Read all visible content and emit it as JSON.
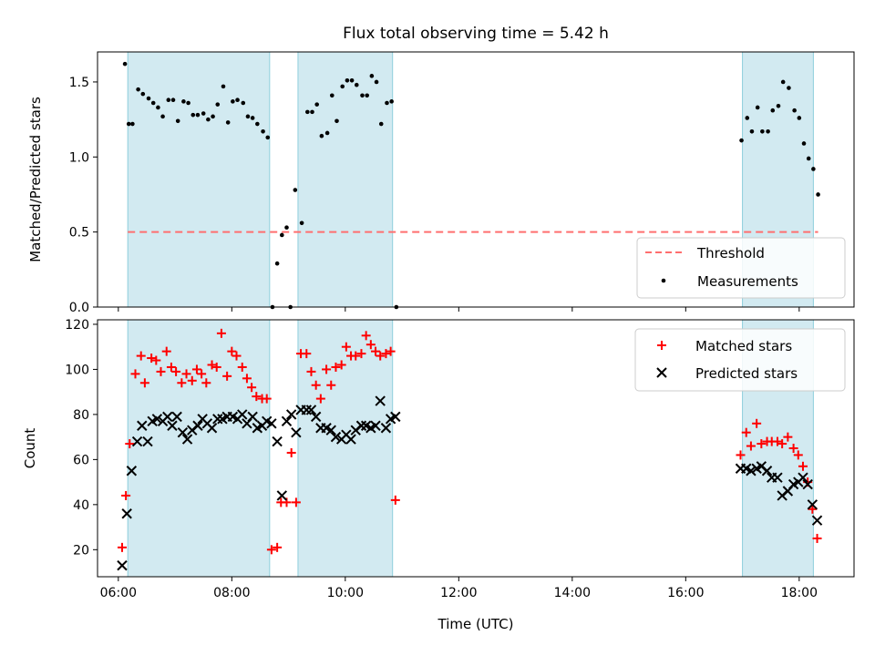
{
  "chart_data": [
    {
      "type": "scatter",
      "title": "Flux total observing time = 5.42 h",
      "xlabel": "",
      "ylabel": "Matched/Predicted stars",
      "xlim": [
        "05:38",
        "18:58"
      ],
      "ylim": [
        0,
        1.7
      ],
      "yticks": [
        0.0,
        0.5,
        1.0,
        1.5
      ],
      "ytick_labels": [
        "0.0",
        "0.5",
        "1.0",
        "1.5"
      ],
      "legend": {
        "position": "lower right",
        "entries": [
          "Threshold",
          "Measurements"
        ]
      },
      "threshold": {
        "name": "Threshold",
        "x": [
          "06:10",
          "18:20"
        ],
        "y": 0.5,
        "color": "#ff6f6f",
        "style": "dashed"
      },
      "observing_windows": [
        [
          "06:10",
          "08:40"
        ],
        [
          "09:10",
          "10:50"
        ],
        [
          "17:00",
          "18:15"
        ]
      ],
      "window_color": "#add8e6",
      "series": [
        {
          "name": "Measurements",
          "color": "#000000",
          "marker": "dot",
          "x": [
            "06:07",
            "06:11",
            "06:15",
            "06:21",
            "06:26",
            "06:32",
            "06:37",
            "06:42",
            "06:47",
            "06:53",
            "06:58",
            "07:03",
            "07:09",
            "07:14",
            "07:19",
            "07:24",
            "07:30",
            "07:35",
            "07:40",
            "07:45",
            "07:51",
            "07:56",
            "08:01",
            "08:06",
            "08:12",
            "08:17",
            "08:22",
            "08:27",
            "08:33",
            "08:38",
            "08:43",
            "08:48",
            "08:53",
            "08:58",
            "09:02",
            "09:07",
            "09:14",
            "09:20",
            "09:25",
            "09:30",
            "09:35",
            "09:41",
            "09:46",
            "09:51",
            "09:57",
            "10:02",
            "10:07",
            "10:12",
            "10:18",
            "10:23",
            "10:28",
            "10:33",
            "10:38",
            "10:44",
            "10:49",
            "10:54",
            "16:59",
            "17:05",
            "17:10",
            "17:16",
            "17:21",
            "17:27",
            "17:32",
            "17:38",
            "17:43",
            "17:49",
            "17:55",
            "18:00",
            "18:05",
            "18:10",
            "18:15",
            "18:20"
          ],
          "y": [
            1.62,
            1.22,
            1.22,
            1.45,
            1.42,
            1.39,
            1.36,
            1.33,
            1.27,
            1.38,
            1.38,
            1.24,
            1.37,
            1.36,
            1.28,
            1.28,
            1.29,
            1.25,
            1.27,
            1.35,
            1.47,
            1.23,
            1.37,
            1.38,
            1.36,
            1.27,
            1.26,
            1.22,
            1.17,
            1.13,
            0.0,
            0.29,
            0.48,
            0.53,
            0.0,
            0.78,
            0.56,
            1.3,
            1.3,
            1.35,
            1.14,
            1.16,
            1.41,
            1.24,
            1.47,
            1.51,
            1.51,
            1.48,
            1.41,
            1.41,
            1.54,
            1.5,
            1.22,
            1.36,
            1.37,
            0.0,
            1.11,
            1.26,
            1.17,
            1.33,
            1.17,
            1.17,
            1.31,
            1.34,
            1.5,
            1.46,
            1.31,
            1.26,
            1.09,
            0.99,
            0.92,
            0.75
          ]
        }
      ]
    },
    {
      "type": "scatter",
      "title": "",
      "xlabel": "Time (UTC)",
      "ylabel": "Count",
      "xlim": [
        "05:38",
        "18:58"
      ],
      "ylim": [
        8,
        122
      ],
      "xticks": [
        "06:00",
        "08:00",
        "10:00",
        "12:00",
        "14:00",
        "16:00",
        "18:00"
      ],
      "yticks": [
        20,
        40,
        60,
        80,
        100,
        120
      ],
      "legend": {
        "position": "upper right",
        "entries": [
          "Matched stars",
          "Predicted stars"
        ]
      },
      "observing_windows": [
        [
          "06:10",
          "08:40"
        ],
        [
          "09:10",
          "10:50"
        ],
        [
          "17:00",
          "18:15"
        ]
      ],
      "window_color": "#add8e6",
      "series": [
        {
          "name": "Matched stars",
          "color": "#ff0000",
          "marker": "plus",
          "x": [
            "06:04",
            "06:08",
            "06:12",
            "06:18",
            "06:24",
            "06:28",
            "06:35",
            "06:40",
            "06:45",
            "06:51",
            "06:56",
            "07:01",
            "07:07",
            "07:12",
            "07:18",
            "07:23",
            "07:28",
            "07:33",
            "07:39",
            "07:44",
            "07:49",
            "07:55",
            "08:00",
            "08:05",
            "08:11",
            "08:16",
            "08:21",
            "08:26",
            "08:32",
            "08:37",
            "08:42",
            "08:48",
            "08:52",
            "08:58",
            "09:03",
            "09:08",
            "09:13",
            "09:19",
            "09:24",
            "09:29",
            "09:34",
            "09:40",
            "09:45",
            "09:50",
            "09:56",
            "10:01",
            "10:06",
            "10:11",
            "10:17",
            "10:22",
            "10:27",
            "10:32",
            "10:37",
            "10:43",
            "10:48",
            "10:53",
            "16:58",
            "17:04",
            "17:09",
            "17:15",
            "17:20",
            "17:26",
            "17:31",
            "17:37",
            "17:42",
            "17:48",
            "17:54",
            "17:59",
            "18:04",
            "18:09",
            "18:14",
            "18:19"
          ],
          "y": [
            21,
            44,
            67,
            98,
            106,
            94,
            105,
            104,
            99,
            108,
            101,
            99,
            94,
            98,
            95,
            100,
            98,
            94,
            102,
            101,
            116,
            97,
            108,
            106,
            101,
            96,
            92,
            88,
            87,
            87,
            20,
            21,
            41,
            41,
            63,
            41,
            107,
            107,
            99,
            93,
            87,
            100,
            93,
            101,
            102,
            110,
            106,
            106,
            107,
            115,
            111,
            108,
            106,
            107,
            108,
            42,
            62,
            72,
            66,
            76,
            67,
            68,
            68,
            68,
            67,
            70,
            65,
            62,
            57,
            50,
            38,
            25
          ]
        },
        {
          "name": "Predicted stars",
          "color": "#000000",
          "marker": "x",
          "x": [
            "06:04",
            "06:09",
            "06:14",
            "06:20",
            "06:25",
            "06:31",
            "06:36",
            "06:41",
            "06:47",
            "06:52",
            "06:57",
            "07:02",
            "07:08",
            "07:13",
            "07:18",
            "07:24",
            "07:29",
            "07:34",
            "07:39",
            "07:45",
            "07:50",
            "07:55",
            "08:01",
            "08:06",
            "08:11",
            "08:16",
            "08:22",
            "08:27",
            "08:32",
            "08:37",
            "08:42",
            "08:48",
            "08:53",
            "08:58",
            "09:03",
            "09:08",
            "09:13",
            "09:19",
            "09:24",
            "09:29",
            "09:34",
            "09:40",
            "09:45",
            "09:50",
            "09:56",
            "10:01",
            "10:06",
            "10:11",
            "10:17",
            "10:22",
            "10:27",
            "10:32",
            "10:37",
            "10:43",
            "10:48",
            "10:53",
            "16:58",
            "17:04",
            "17:09",
            "17:15",
            "17:20",
            "17:26",
            "17:31",
            "17:37",
            "17:42",
            "17:48",
            "17:54",
            "17:59",
            "18:04",
            "18:09",
            "18:14",
            "18:19"
          ],
          "y": [
            13,
            36,
            55,
            68,
            75,
            68,
            77,
            78,
            77,
            79,
            75,
            79,
            72,
            69,
            73,
            75,
            78,
            76,
            74,
            78,
            78,
            79,
            79,
            78,
            80,
            76,
            79,
            74,
            75,
            77,
            76,
            68,
            44,
            77,
            80,
            72,
            82,
            82,
            82,
            79,
            74,
            74,
            73,
            70,
            69,
            71,
            69,
            73,
            75,
            75,
            74,
            75,
            86,
            74,
            78,
            79,
            56,
            56,
            55,
            56,
            57,
            55,
            52,
            52,
            44,
            46,
            49,
            50,
            52,
            49,
            40,
            33
          ]
        }
      ]
    }
  ]
}
